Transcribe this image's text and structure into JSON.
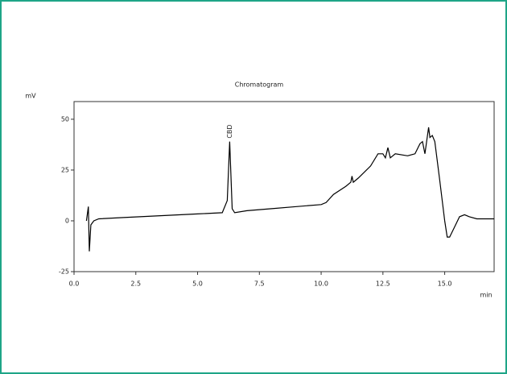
{
  "chart_data": {
    "type": "line",
    "title": "Chromatogram",
    "y_label": "mV",
    "x_label": "min",
    "xlim": [
      0,
      17
    ],
    "ylim": [
      -25,
      58.7
    ],
    "xticks": [
      {
        "value": 0,
        "label": "0.0"
      },
      2.5,
      {
        "value": 5,
        "label": "5.0"
      },
      7.5,
      {
        "value": 10,
        "label": "10.0"
      },
      12.5,
      {
        "value": 15,
        "label": "15.0"
      }
    ],
    "yticks": [
      -25,
      0,
      25,
      50
    ],
    "annotations": [
      {
        "text": "CBD",
        "x": 6.3,
        "y": 39
      }
    ],
    "series": [
      {
        "color": "#000000",
        "x": [
          0.5,
          0.58,
          0.62,
          0.68,
          0.8,
          1.0,
          2.0,
          3.0,
          4.0,
          5.0,
          6.0,
          6.2,
          6.3,
          6.4,
          6.5,
          7.0,
          8.0,
          9.0,
          10.0,
          10.2,
          10.5,
          11.0,
          11.2,
          11.25,
          11.3,
          11.5,
          12.0,
          12.3,
          12.5,
          12.6,
          12.7,
          12.8,
          13.0,
          13.5,
          13.8,
          14.0,
          14.1,
          14.2,
          14.35,
          14.4,
          14.5,
          14.6,
          14.8,
          15.0,
          15.1,
          15.2,
          15.4,
          15.6,
          15.8,
          16.0,
          16.3,
          17.0
        ],
        "values": [
          0,
          7,
          -15,
          -2,
          0,
          1,
          1.6,
          2.2,
          2.8,
          3.4,
          4,
          10,
          39,
          6,
          4,
          5,
          6,
          7,
          8,
          9,
          13,
          17,
          19,
          22,
          19,
          21,
          27,
          33,
          33,
          31,
          36,
          31,
          33,
          32,
          33,
          38,
          39,
          33,
          46,
          41,
          42,
          39,
          20,
          0,
          -8,
          -8,
          -3,
          2,
          3,
          2,
          1,
          1
        ]
      }
    ]
  }
}
